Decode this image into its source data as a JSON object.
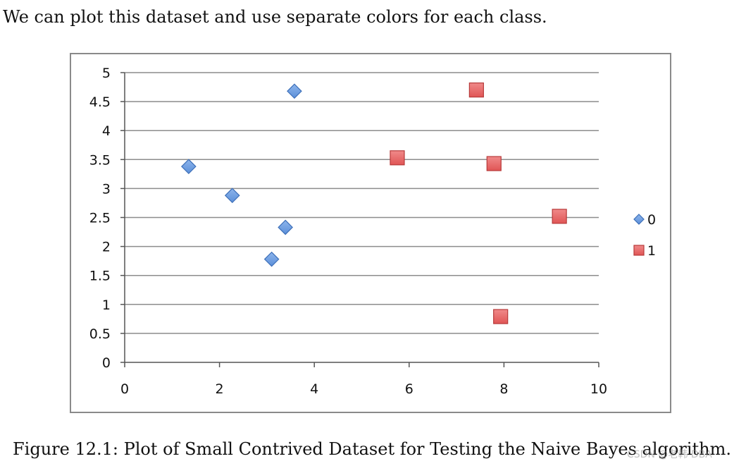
{
  "intro_text": "We can plot this dataset and use separate colors for each class.",
  "caption": "Figure 12.1: Plot of Small Contrived Dataset for Testing the Naive Bayes algorithm.",
  "watermark": "CSDN @老韩 DBA",
  "colors": {
    "class0": "#5b8fd9",
    "class0_stroke": "#3d6fb8",
    "class1": "#e05555",
    "class1_stroke": "#b73a3a",
    "grid": "#8c8c8c",
    "axis": "#555555"
  },
  "chart_data": {
    "type": "scatter",
    "title": "",
    "xlabel": "",
    "ylabel": "",
    "xlim": [
      0,
      10
    ],
    "ylim": [
      0,
      5
    ],
    "x_ticks": [
      0,
      2,
      4,
      6,
      8,
      10
    ],
    "y_ticks": [
      0,
      0.5,
      1,
      1.5,
      2,
      2.5,
      3,
      3.5,
      4,
      4.5,
      5
    ],
    "x_tick_labels": [
      "0",
      "2",
      "4",
      "6",
      "8",
      "10"
    ],
    "y_tick_labels": [
      "0",
      "0.5",
      "1",
      "1.5",
      "2",
      "2.5",
      "3",
      "3.5",
      "4",
      "4.5",
      "5"
    ],
    "grid": "horizontal",
    "legend_position": "right",
    "series": [
      {
        "name": "0",
        "marker": "diamond",
        "points": [
          {
            "x": 1.35,
            "y": 3.38
          },
          {
            "x": 2.27,
            "y": 2.88
          },
          {
            "x": 3.58,
            "y": 4.68
          },
          {
            "x": 3.39,
            "y": 2.33
          },
          {
            "x": 3.1,
            "y": 1.78
          }
        ]
      },
      {
        "name": "1",
        "marker": "square",
        "points": [
          {
            "x": 7.42,
            "y": 4.7
          },
          {
            "x": 5.75,
            "y": 3.53
          },
          {
            "x": 7.79,
            "y": 3.43
          },
          {
            "x": 9.17,
            "y": 2.52
          },
          {
            "x": 7.93,
            "y": 0.79
          }
        ]
      }
    ]
  }
}
